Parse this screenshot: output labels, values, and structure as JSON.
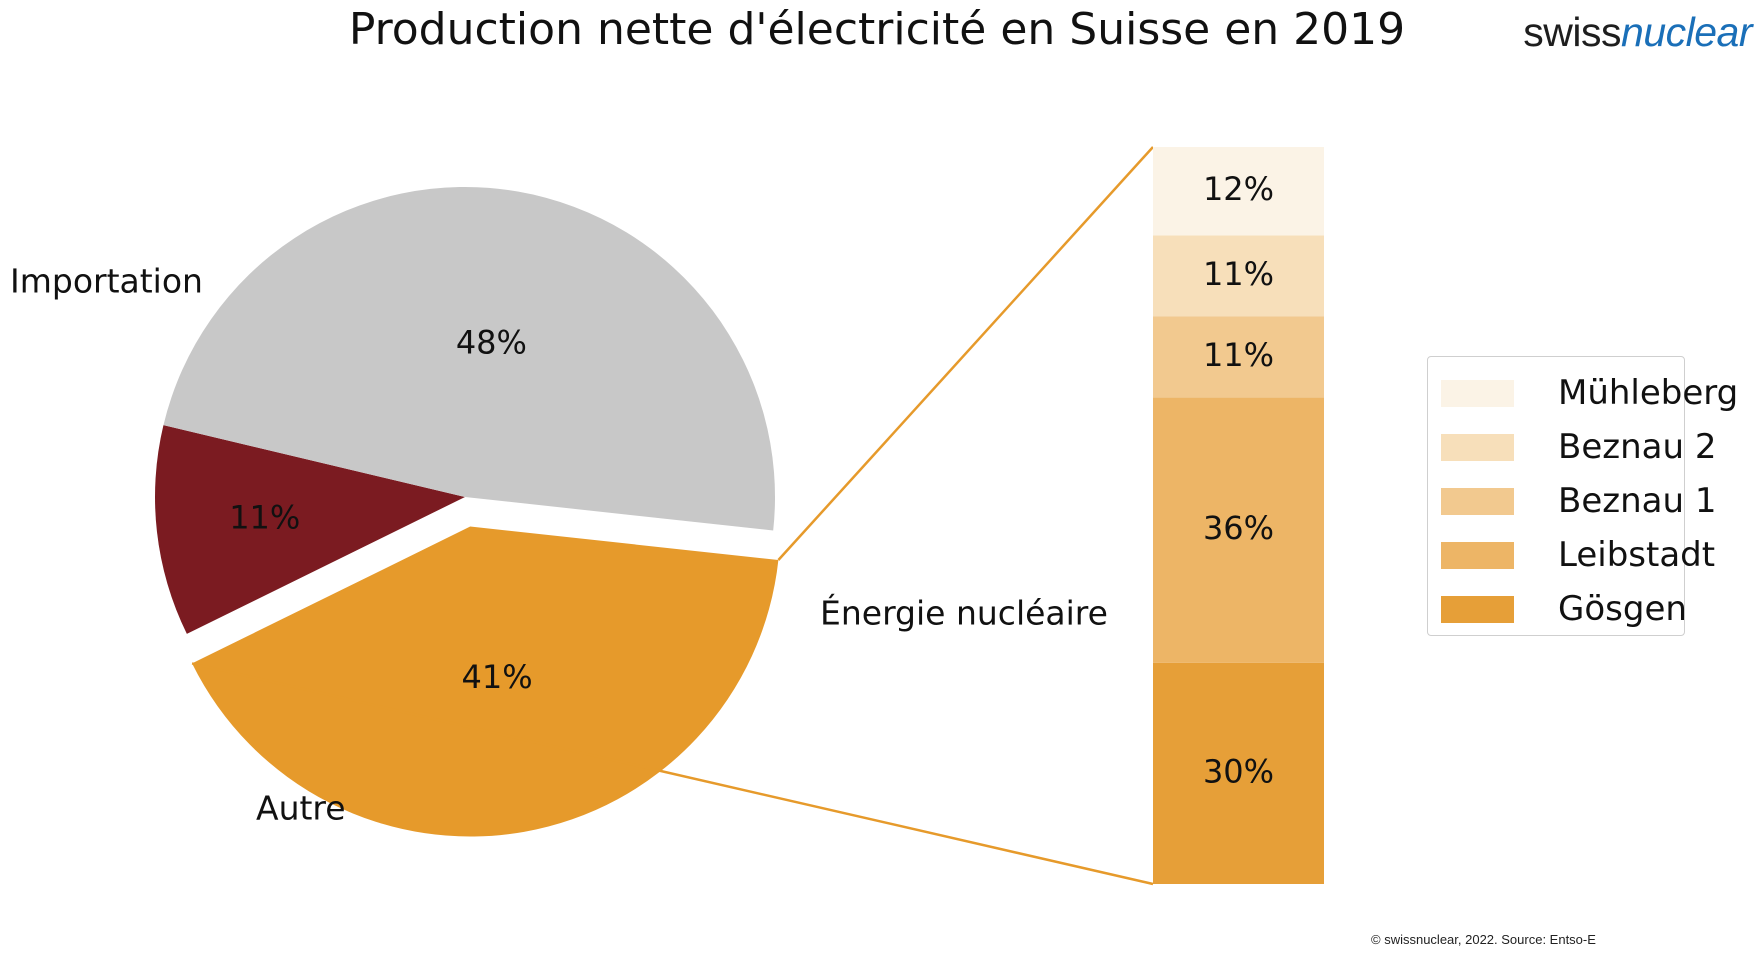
{
  "title": "Production nette d'électricité en Suisse en 2019",
  "logo": {
    "part1": "swiss",
    "part2": "nuclear"
  },
  "footer": "© swissnuclear, 2022. Source: Entso-E",
  "colors": {
    "importation": "#c8c8c8",
    "autre": "#7b1b21",
    "nucleaire": "#e69a2b",
    "connector": "#e69a2b",
    "muhleberg": "#fbf3e6",
    "beznau2": "#f7dfba",
    "beznau1": "#f2c98f",
    "leibstadt": "#edb566",
    "gosgen": "#e69f38"
  },
  "chart_data": [
    {
      "type": "pie",
      "title": "",
      "labels": [
        "Importation",
        "Autre",
        "Énergie nucléaire"
      ],
      "values": [
        48,
        11,
        41
      ],
      "value_labels": [
        "48%",
        "11%",
        "41%"
      ],
      "exploded": "Énergie nucléaire"
    },
    {
      "type": "bar",
      "stacked": true,
      "title": "",
      "categories": [
        "Énergie nucléaire"
      ],
      "series": [
        {
          "name": "Gösgen",
          "values": [
            30
          ],
          "label": "30%"
        },
        {
          "name": "Leibstadt",
          "values": [
            36
          ],
          "label": "36%"
        },
        {
          "name": "Beznau 1",
          "values": [
            11
          ],
          "label": "11%"
        },
        {
          "name": "Beznau 2",
          "values": [
            11
          ],
          "label": "11%"
        },
        {
          "name": "Mühleberg",
          "values": [
            12
          ],
          "label": "12%"
        }
      ],
      "legend_position": "right"
    }
  ],
  "legend": {
    "items": [
      {
        "label": "Mühleberg",
        "color": "#fbf3e6"
      },
      {
        "label": "Beznau 2",
        "color": "#f7dfba"
      },
      {
        "label": "Beznau 1",
        "color": "#f2c98f"
      },
      {
        "label": "Leibstadt",
        "color": "#edb566"
      },
      {
        "label": "Gösgen",
        "color": "#e69f38"
      }
    ]
  }
}
